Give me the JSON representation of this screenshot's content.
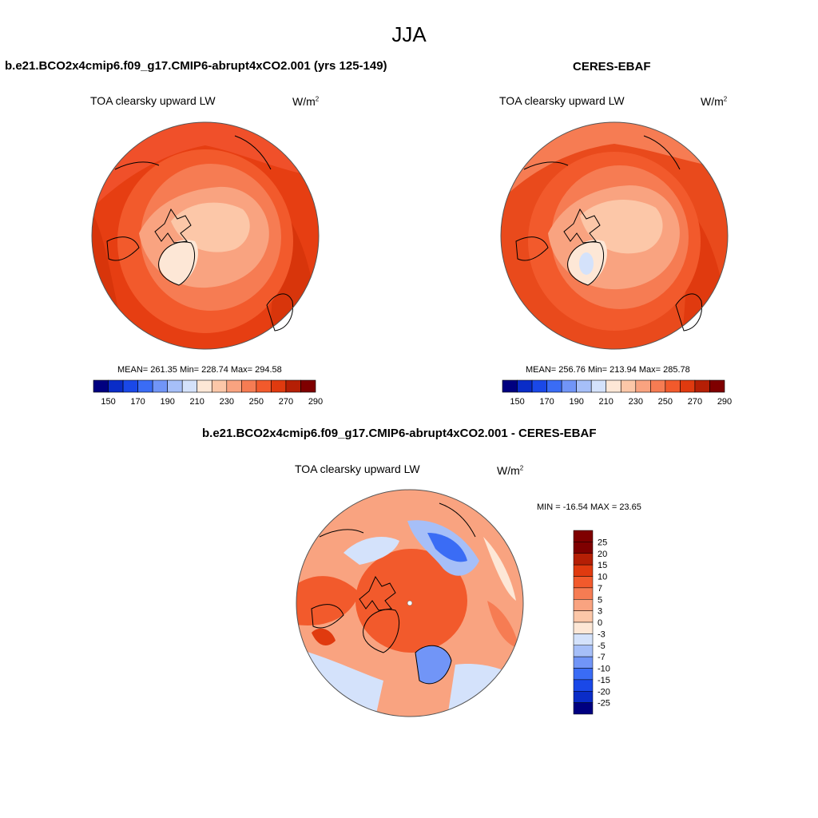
{
  "season": "JJA",
  "panels": [
    {
      "title": "b.e21.BCO2x4cmip6.f09_g17.CMIP6-abrupt4xCO2.001 (yrs 125-149)",
      "variable": "TOA clearsky upward LW",
      "units": "W/m",
      "units_exp": "2",
      "stats": "MEAN= 261.35  Min= 228.74  Max= 294.58",
      "colorbar_labels": [
        "150",
        "170",
        "190",
        "210",
        "230",
        "250",
        "270",
        "290"
      ]
    },
    {
      "title": "CERES-EBAF",
      "variable": "TOA clearsky upward LW",
      "units": "W/m",
      "units_exp": "2",
      "stats": "MEAN= 256.76  Min= 213.94  Max= 285.78",
      "colorbar_labels": [
        "150",
        "170",
        "190",
        "210",
        "230",
        "250",
        "270",
        "290"
      ]
    }
  ],
  "diff": {
    "title": "b.e21.BCO2x4cmip6.f09_g17.CMIP6-abrupt4xCO2.001 - CERES-EBAF",
    "variable": "TOA clearsky upward LW",
    "units": "W/m",
    "units_exp": "2",
    "stats": "MIN = -16.54 MAX =  23.65",
    "colorbar_labels": [
      "25",
      "20",
      "15",
      "10",
      "7",
      "5",
      "3",
      "0",
      "-3",
      "-5",
      "-7",
      "-10",
      "-15",
      "-20",
      "-25"
    ]
  },
  "colors": {
    "abs_scale": [
      "#000080",
      "#0a2cc7",
      "#1a48e8",
      "#3a6cf5",
      "#7195f7",
      "#a6bff8",
      "#d4e2fb",
      "#fde7d6",
      "#fcc7a8",
      "#f9a380",
      "#f67c53",
      "#f25a2c",
      "#e03a0f",
      "#b51f05",
      "#7f0000"
    ],
    "diff_scale": [
      "#7f0000",
      "#b51f05",
      "#e03a0f",
      "#f25a2c",
      "#f67c53",
      "#f9a380",
      "#fcc7a8",
      "#fde7d6",
      "#d4e2fb",
      "#a6bff8",
      "#7195f7",
      "#3a6cf5",
      "#1a48e8",
      "#0a2cc7",
      "#000080"
    ],
    "coast": "#000000"
  }
}
